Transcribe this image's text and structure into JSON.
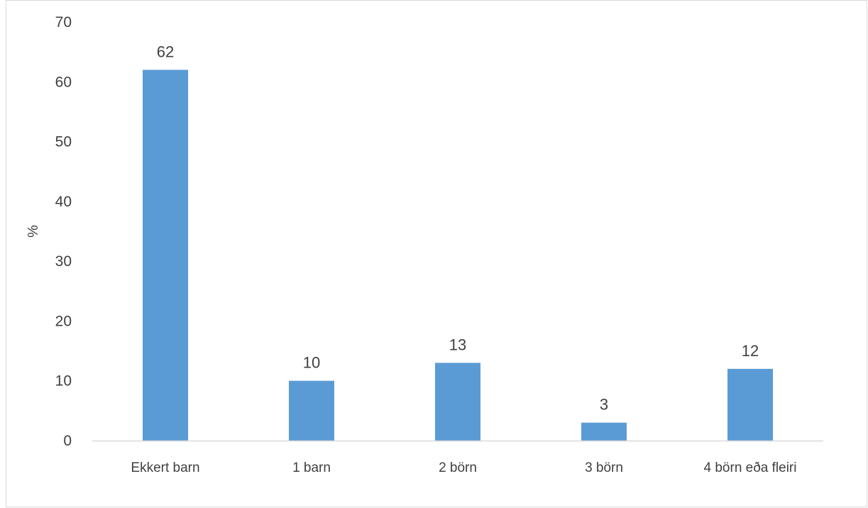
{
  "chart_data": {
    "type": "bar",
    "title": "",
    "xlabel": "",
    "ylabel": "%",
    "categories": [
      "Ekkert barn",
      "1 barn",
      "2 börn",
      "3 börn",
      "4 börn eða fleiri"
    ],
    "values": [
      62,
      10,
      13,
      3,
      12
    ],
    "data_labels": [
      "62",
      "10",
      "13",
      "3",
      "12"
    ],
    "ylim": [
      0,
      70
    ],
    "yticks": [
      0,
      10,
      20,
      30,
      40,
      50,
      60,
      70
    ],
    "grid": false,
    "legend": "none",
    "bar_color": "#5b9bd5",
    "axis_color": "#d9d9d9",
    "text_color": "#404040"
  }
}
